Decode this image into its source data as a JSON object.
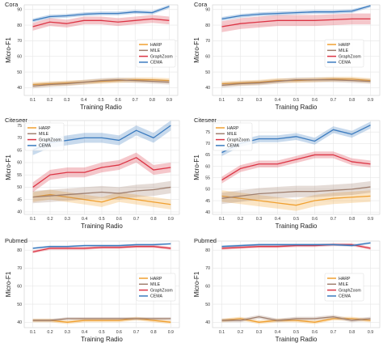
{
  "chart_data": [
    {
      "type": "line",
      "title": "Cora",
      "xlabel": "Training Radio",
      "ylabel": "Micro-F1",
      "x": [
        0.1,
        0.2,
        0.3,
        0.4,
        0.5,
        0.6,
        0.7,
        0.8,
        0.9
      ],
      "ylim": [
        35,
        93
      ],
      "yticks": [
        40,
        50,
        60,
        70,
        80,
        90
      ],
      "legend": "right",
      "grid": true,
      "series": [
        {
          "name": "HARP",
          "color": "#f0a030",
          "values": [
            42,
            42.5,
            43,
            43.5,
            44,
            44.5,
            45,
            45,
            44.5
          ],
          "band": 1.5
        },
        {
          "name": "MILE",
          "color": "#a08070",
          "values": [
            41,
            42,
            42.5,
            43.5,
            44.5,
            45,
            44.5,
            44,
            43.5
          ],
          "band": 1.5
        },
        {
          "name": "GraphZoom",
          "color": "#dc3545",
          "values": [
            79,
            82,
            81,
            83,
            83,
            82,
            83,
            84,
            83
          ],
          "band": 2.5
        },
        {
          "name": "CEMA",
          "color": "#3b7bbf",
          "values": [
            83,
            85.5,
            86,
            87,
            87.5,
            87.5,
            88.5,
            88,
            92
          ],
          "band": 1.2
        }
      ]
    },
    {
      "type": "line",
      "title": "Cora",
      "xlabel": "Training Radio",
      "ylabel": "Micro-F1",
      "x": [
        0.1,
        0.2,
        0.3,
        0.4,
        0.5,
        0.6,
        0.7,
        0.8,
        0.9
      ],
      "ylim": [
        35,
        93
      ],
      "yticks": [
        40,
        50,
        60,
        70,
        80,
        90
      ],
      "legend": "right",
      "grid": true,
      "series": [
        {
          "name": "HARP",
          "color": "#f0a030",
          "values": [
            42.5,
            43,
            43.5,
            44.5,
            44.5,
            45,
            45.5,
            45.5,
            44.5
          ],
          "band": 1.5
        },
        {
          "name": "MILE",
          "color": "#a08070",
          "values": [
            41.5,
            42.5,
            43,
            44,
            45,
            45,
            45,
            44.5,
            44
          ],
          "band": 1.5
        },
        {
          "name": "GraphZoom",
          "color": "#dc3545",
          "values": [
            79,
            81,
            82,
            83,
            83,
            83,
            83.5,
            84,
            84
          ],
          "band": 3.5
        },
        {
          "name": "CEMA",
          "color": "#3b7bbf",
          "values": [
            84,
            86,
            87,
            87.5,
            88,
            88.5,
            88.5,
            89,
            92.5
          ],
          "band": 1.2
        }
      ]
    },
    {
      "type": "line",
      "title": "Citeseer",
      "xlabel": "Training Radio",
      "ylabel": "Micro-F1",
      "x": [
        0.1,
        0.2,
        0.3,
        0.4,
        0.5,
        0.6,
        0.7,
        0.8,
        0.9
      ],
      "ylim": [
        39,
        77
      ],
      "yticks": [
        40,
        45,
        50,
        55,
        60,
        65,
        70,
        75
      ],
      "legend": "upper-left",
      "grid": true,
      "series": [
        {
          "name": "HARP",
          "color": "#f0a030",
          "values": [
            46,
            47,
            46,
            45,
            44,
            46,
            45,
            44,
            43
          ],
          "band": 2
        },
        {
          "name": "MILE",
          "color": "#a08070",
          "values": [
            46,
            46.5,
            47,
            47.5,
            48,
            47.5,
            48.5,
            49,
            50
          ],
          "band": 2.5
        },
        {
          "name": "GraphZoom",
          "color": "#dc3545",
          "values": [
            50,
            55,
            56,
            56,
            58,
            59,
            62,
            57,
            58
          ],
          "band": 2
        },
        {
          "name": "CEMA",
          "color": "#3b7bbf",
          "values": [
            65,
            68,
            69,
            70,
            70,
            69,
            73,
            70,
            75
          ],
          "band": 2
        }
      ]
    },
    {
      "type": "line",
      "title": "Citeseer",
      "xlabel": "Training Radio",
      "ylabel": "Micro-F1",
      "x": [
        0.1,
        0.2,
        0.3,
        0.4,
        0.5,
        0.6,
        0.7,
        0.8,
        0.9
      ],
      "ylim": [
        39,
        80
      ],
      "yticks": [
        40,
        45,
        50,
        55,
        60,
        65,
        70,
        75
      ],
      "legend": "upper-left",
      "grid": true,
      "series": [
        {
          "name": "HARP",
          "color": "#f0a030",
          "values": [
            47,
            46,
            45,
            44,
            43,
            45,
            46,
            46.5,
            47
          ],
          "band": 2.5
        },
        {
          "name": "MILE",
          "color": "#a08070",
          "values": [
            46,
            47,
            48,
            48.5,
            49,
            49,
            49.5,
            50,
            51
          ],
          "band": 2.5
        },
        {
          "name": "GraphZoom",
          "color": "#dc3545",
          "values": [
            54,
            59,
            61,
            61,
            63,
            65,
            65,
            62,
            61
          ],
          "band": 1.5
        },
        {
          "name": "CEMA",
          "color": "#3b7bbf",
          "values": [
            66,
            70,
            72,
            72,
            73,
            71,
            76,
            74,
            78
          ],
          "band": 1.5
        }
      ]
    },
    {
      "type": "line",
      "title": "Pubmed",
      "xlabel": "Training Radio",
      "ylabel": "Micro-F1",
      "x": [
        0.1,
        0.2,
        0.3,
        0.4,
        0.5,
        0.6,
        0.7,
        0.8,
        0.9
      ],
      "ylim": [
        37,
        85
      ],
      "yticks": [
        40,
        50,
        60,
        70,
        80
      ],
      "legend": "right",
      "grid": true,
      "series": [
        {
          "name": "HARP",
          "color": "#f0a030",
          "values": [
            41,
            41,
            40,
            41,
            41,
            41,
            42,
            41,
            40
          ],
          "band": 1
        },
        {
          "name": "MILE",
          "color": "#a08070",
          "values": [
            41,
            41,
            42,
            42,
            42,
            42,
            42,
            42,
            42
          ],
          "band": 0.8
        },
        {
          "name": "GraphZoom",
          "color": "#dc3545",
          "values": [
            79,
            81,
            81,
            81,
            81.5,
            81.5,
            82,
            82,
            81
          ],
          "band": 0.8
        },
        {
          "name": "CEMA",
          "color": "#3b7bbf",
          "values": [
            81,
            82,
            82,
            82.5,
            82.5,
            82.5,
            83,
            83,
            83.5
          ],
          "band": 0.5
        }
      ]
    },
    {
      "type": "line",
      "title": "Pubmed",
      "xlabel": "Training Radio",
      "ylabel": "Micro-F1",
      "x": [
        0.1,
        0.2,
        0.3,
        0.4,
        0.5,
        0.6,
        0.7,
        0.8,
        0.9
      ],
      "ylim": [
        37,
        85
      ],
      "yticks": [
        40,
        50,
        60,
        70,
        80
      ],
      "legend": "right",
      "grid": true,
      "series": [
        {
          "name": "HARP",
          "color": "#f0a030",
          "values": [
            41,
            42,
            40,
            41,
            41,
            40,
            42,
            42,
            41
          ],
          "band": 1
        },
        {
          "name": "MILE",
          "color": "#a08070",
          "values": [
            41,
            41,
            43,
            41,
            42,
            42,
            43,
            41,
            42
          ],
          "band": 1
        },
        {
          "name": "GraphZoom",
          "color": "#dc3545",
          "values": [
            81,
            81.5,
            82,
            82,
            82.5,
            82.5,
            83,
            83,
            81
          ],
          "band": 0.8
        },
        {
          "name": "CEMA",
          "color": "#3b7bbf",
          "values": [
            82,
            82.5,
            83,
            83,
            83,
            83,
            83,
            82.5,
            84
          ],
          "band": 0.6
        }
      ]
    }
  ]
}
